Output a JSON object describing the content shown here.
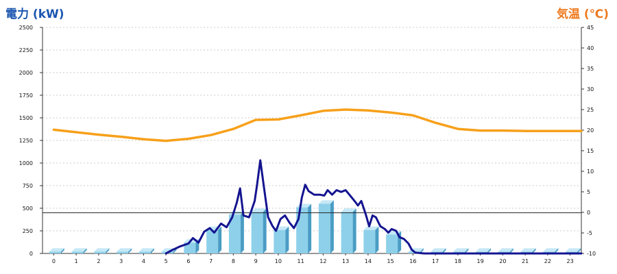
{
  "chart_data": {
    "type": "bar",
    "left_axis_label": "電力 (kW)",
    "right_axis_label": "気温 (℃)",
    "categories": [
      "0",
      "1",
      "2",
      "3",
      "4",
      "5",
      "6",
      "7",
      "8",
      "9",
      "10",
      "11",
      "12",
      "13",
      "14",
      "15",
      "16",
      "17",
      "18",
      "19",
      "20",
      "21",
      "22",
      "23"
    ],
    "y_left_lim": [
      0,
      2500
    ],
    "y_left_ticks": [
      "0",
      "250",
      "500",
      "750",
      "1000",
      "1250",
      "1500",
      "1750",
      "2000",
      "2250",
      "2500"
    ],
    "y_right_lim": [
      -10,
      45
    ],
    "y_right_ticks": [
      "-10",
      "-5",
      "0",
      "5",
      "10",
      "15",
      "20",
      "25",
      "30",
      "35",
      "40",
      "45"
    ],
    "grid": true,
    "reference_line_y": 450,
    "bar_values": [
      20,
      20,
      20,
      20,
      20,
      20,
      120,
      260,
      430,
      460,
      260,
      510,
      550,
      460,
      260,
      210,
      20,
      20,
      20,
      20,
      20,
      20,
      20,
      20
    ],
    "power_line": [
      [
        5,
        0
      ],
      [
        5.3,
        40
      ],
      [
        5.6,
        75
      ],
      [
        6,
        110
      ],
      [
        6.2,
        170
      ],
      [
        6.45,
        120
      ],
      [
        6.7,
        240
      ],
      [
        6.95,
        280
      ],
      [
        7.15,
        230
      ],
      [
        7.45,
        330
      ],
      [
        7.7,
        290
      ],
      [
        7.95,
        400
      ],
      [
        8.15,
        560
      ],
      [
        8.3,
        720
      ],
      [
        8.45,
        420
      ],
      [
        8.7,
        400
      ],
      [
        8.95,
        580
      ],
      [
        9.05,
        750
      ],
      [
        9.2,
        1030
      ],
      [
        9.38,
        700
      ],
      [
        9.55,
        400
      ],
      [
        9.75,
        300
      ],
      [
        9.9,
        250
      ],
      [
        10.1,
        380
      ],
      [
        10.3,
        420
      ],
      [
        10.5,
        340
      ],
      [
        10.7,
        280
      ],
      [
        10.9,
        380
      ],
      [
        11.05,
        620
      ],
      [
        11.2,
        760
      ],
      [
        11.35,
        690
      ],
      [
        11.6,
        650
      ],
      [
        11.85,
        650
      ],
      [
        12.05,
        640
      ],
      [
        12.2,
        700
      ],
      [
        12.4,
        650
      ],
      [
        12.6,
        700
      ],
      [
        12.8,
        680
      ],
      [
        13,
        700
      ],
      [
        13.2,
        640
      ],
      [
        13.4,
        580
      ],
      [
        13.55,
        530
      ],
      [
        13.7,
        580
      ],
      [
        13.9,
        430
      ],
      [
        14.05,
        300
      ],
      [
        14.2,
        420
      ],
      [
        14.35,
        400
      ],
      [
        14.55,
        300
      ],
      [
        14.75,
        270
      ],
      [
        14.9,
        230
      ],
      [
        15.05,
        270
      ],
      [
        15.25,
        250
      ],
      [
        15.4,
        180
      ],
      [
        15.6,
        160
      ],
      [
        15.8,
        110
      ],
      [
        15.95,
        40
      ],
      [
        16.1,
        10
      ],
      [
        16.5,
        0
      ],
      [
        23.5,
        0
      ]
    ],
    "temperature_line": [
      [
        0,
        20.1
      ],
      [
        1,
        19.5
      ],
      [
        2,
        18.9
      ],
      [
        3,
        18.4
      ],
      [
        4,
        17.8
      ],
      [
        5,
        17.4
      ],
      [
        6,
        17.9
      ],
      [
        7,
        18.8
      ],
      [
        8,
        20.3
      ],
      [
        9,
        22.5
      ],
      [
        10,
        22.6
      ],
      [
        11,
        23.6
      ],
      [
        12,
        24.7
      ],
      [
        13,
        25.0
      ],
      [
        14,
        24.8
      ],
      [
        15,
        24.3
      ],
      [
        16,
        23.6
      ],
      [
        17,
        21.8
      ],
      [
        18,
        20.3
      ],
      [
        19,
        19.9
      ],
      [
        20,
        19.9
      ],
      [
        21,
        19.8
      ],
      [
        22,
        19.8
      ],
      [
        23,
        19.8
      ],
      [
        23.5,
        19.8
      ]
    ],
    "colors": {
      "bar_front": "#8ed0ea",
      "bar_side": "#4a9cc4",
      "bar_top": "#c6e8f6",
      "power_line": "#141490",
      "temperature_line": "#f7a01a",
      "left_label": "#1a56b0",
      "right_label": "#ee7a1e",
      "grid": "#bbbbbb",
      "reference_line": "#222222"
    }
  }
}
